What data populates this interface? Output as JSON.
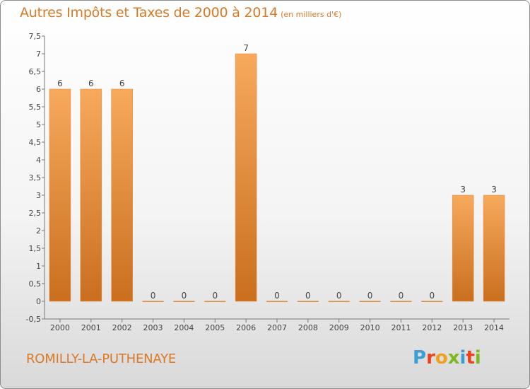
{
  "header": {
    "title": "Autres Impôts et Taxes de 2000 à 2014",
    "unit": "(en milliers d'€)"
  },
  "footer": {
    "commune": "ROMILLY-LA-PUTHENAYE",
    "logo_letters": [
      "P",
      "r",
      "o",
      "x",
      "i",
      "t",
      "i"
    ],
    "logo_colors": [
      "#3a9fd6",
      "#e9431a",
      "#f0a01e",
      "#7cb81e",
      "#3a9fd6",
      "#e9431a",
      "#7cb81e"
    ]
  },
  "colors": {
    "accent": "#d97925",
    "bar_light": "#f6a85a",
    "bar_dark": "#c86e1e",
    "zero_line": "#e08a3a"
  },
  "chart_data": {
    "type": "bar",
    "categories": [
      "2000",
      "2001",
      "2002",
      "2003",
      "2004",
      "2005",
      "2006",
      "2007",
      "2008",
      "2009",
      "2010",
      "2011",
      "2012",
      "2013",
      "2014"
    ],
    "values": [
      6,
      6,
      6,
      0,
      0,
      0,
      7,
      0,
      0,
      0,
      0,
      0,
      0,
      3,
      3
    ],
    "value_labels": [
      "6",
      "6",
      "6",
      "0",
      "0",
      "0",
      "7",
      "0",
      "0",
      "0",
      "0",
      "0",
      "0",
      "3",
      "3"
    ],
    "ylim": [
      -0.5,
      7.5
    ],
    "yticks": [
      "-0,5",
      "0",
      "0,5",
      "1",
      "1,5",
      "2",
      "2,5",
      "3",
      "3,5",
      "4",
      "4,5",
      "5",
      "5,5",
      "6",
      "6,5",
      "7",
      "7,5"
    ],
    "ytick_values": [
      -0.5,
      0,
      0.5,
      1,
      1.5,
      2,
      2.5,
      3,
      3.5,
      4,
      4.5,
      5,
      5.5,
      6,
      6.5,
      7,
      7.5
    ],
    "grid": false,
    "legend": "none"
  }
}
